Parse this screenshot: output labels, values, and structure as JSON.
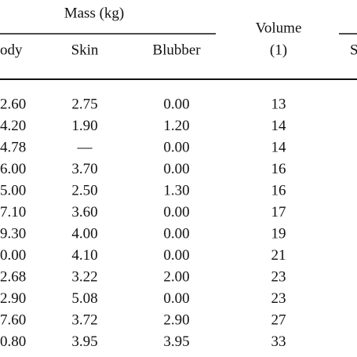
{
  "table": {
    "group_header": "Mass (kg)",
    "columns": [
      "ody",
      "Skin",
      "Blubber",
      "Volume",
      "(1)",
      "S"
    ],
    "rows": [
      [
        "2.60",
        "2.75",
        "0.00",
        "13"
      ],
      [
        "4.20",
        "1.90",
        "1.20",
        "14"
      ],
      [
        "4.78",
        "—",
        "0.00",
        "14"
      ],
      [
        "6.00",
        "3.70",
        "0.00",
        "16"
      ],
      [
        "5.00",
        "2.50",
        "1.30",
        "16"
      ],
      [
        "7.10",
        "3.60",
        "0.00",
        "17"
      ],
      [
        "9.30",
        "4.00",
        "0.00",
        "19"
      ],
      [
        "0.00",
        "4.10",
        "0.00",
        "21"
      ],
      [
        "2.68",
        "3.22",
        "2.00",
        "23"
      ],
      [
        "2.90",
        "5.08",
        "0.00",
        "23"
      ],
      [
        "7.60",
        "3.72",
        "2.90",
        "27"
      ],
      [
        "0.80",
        "3.95",
        "3.95",
        "33"
      ]
    ]
  }
}
